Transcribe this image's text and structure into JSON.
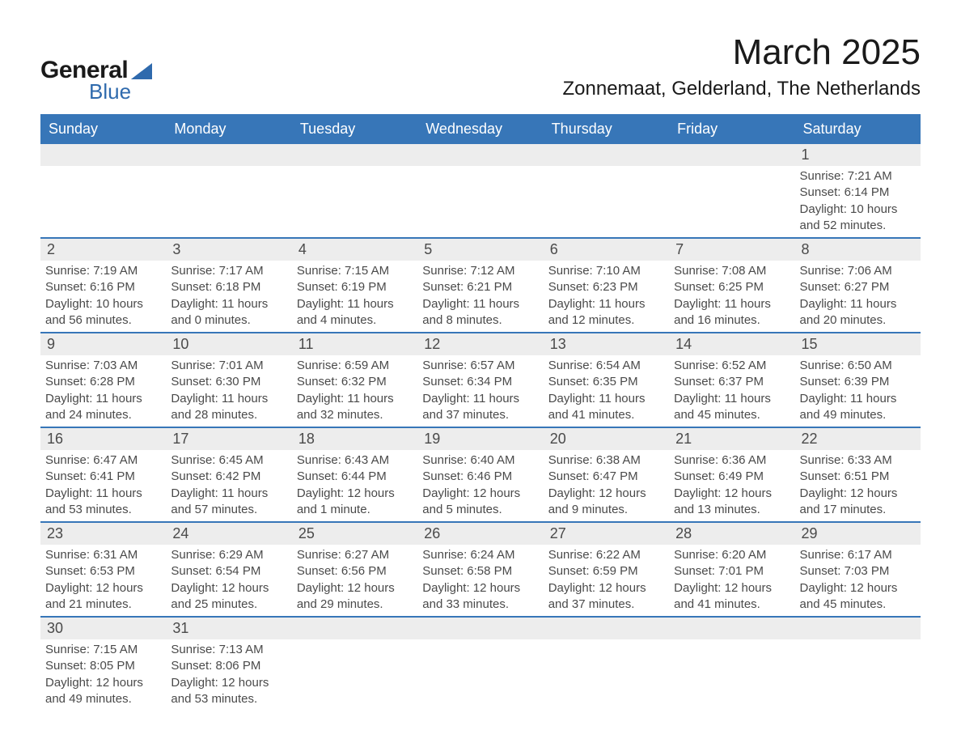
{
  "brand": {
    "name_part1": "General",
    "name_part2": "Blue"
  },
  "header": {
    "month_title": "March 2025",
    "location": "Zonnemaat, Gelderland, The Netherlands"
  },
  "colors": {
    "header_bg": "#3776b8",
    "header_text": "#ffffff",
    "daynum_bg": "#ededed",
    "row_divider": "#3776b8",
    "body_text": "#4a4a4a",
    "title_text": "#1a1a1a",
    "logo_blue": "#2f6aad",
    "page_bg": "#ffffff"
  },
  "typography": {
    "month_title_fontsize": 44,
    "location_fontsize": 24,
    "weekday_fontsize": 18,
    "daynum_fontsize": 18,
    "body_fontsize": 15
  },
  "weekdays": [
    "Sunday",
    "Monday",
    "Tuesday",
    "Wednesday",
    "Thursday",
    "Friday",
    "Saturday"
  ],
  "weeks": [
    [
      {
        "empty": true
      },
      {
        "empty": true
      },
      {
        "empty": true
      },
      {
        "empty": true
      },
      {
        "empty": true
      },
      {
        "empty": true
      },
      {
        "day": "1",
        "sunrise": "Sunrise: 7:21 AM",
        "sunset": "Sunset: 6:14 PM",
        "daylight": "Daylight: 10 hours and 52 minutes."
      }
    ],
    [
      {
        "day": "2",
        "sunrise": "Sunrise: 7:19 AM",
        "sunset": "Sunset: 6:16 PM",
        "daylight": "Daylight: 10 hours and 56 minutes."
      },
      {
        "day": "3",
        "sunrise": "Sunrise: 7:17 AM",
        "sunset": "Sunset: 6:18 PM",
        "daylight": "Daylight: 11 hours and 0 minutes."
      },
      {
        "day": "4",
        "sunrise": "Sunrise: 7:15 AM",
        "sunset": "Sunset: 6:19 PM",
        "daylight": "Daylight: 11 hours and 4 minutes."
      },
      {
        "day": "5",
        "sunrise": "Sunrise: 7:12 AM",
        "sunset": "Sunset: 6:21 PM",
        "daylight": "Daylight: 11 hours and 8 minutes."
      },
      {
        "day": "6",
        "sunrise": "Sunrise: 7:10 AM",
        "sunset": "Sunset: 6:23 PM",
        "daylight": "Daylight: 11 hours and 12 minutes."
      },
      {
        "day": "7",
        "sunrise": "Sunrise: 7:08 AM",
        "sunset": "Sunset: 6:25 PM",
        "daylight": "Daylight: 11 hours and 16 minutes."
      },
      {
        "day": "8",
        "sunrise": "Sunrise: 7:06 AM",
        "sunset": "Sunset: 6:27 PM",
        "daylight": "Daylight: 11 hours and 20 minutes."
      }
    ],
    [
      {
        "day": "9",
        "sunrise": "Sunrise: 7:03 AM",
        "sunset": "Sunset: 6:28 PM",
        "daylight": "Daylight: 11 hours and 24 minutes."
      },
      {
        "day": "10",
        "sunrise": "Sunrise: 7:01 AM",
        "sunset": "Sunset: 6:30 PM",
        "daylight": "Daylight: 11 hours and 28 minutes."
      },
      {
        "day": "11",
        "sunrise": "Sunrise: 6:59 AM",
        "sunset": "Sunset: 6:32 PM",
        "daylight": "Daylight: 11 hours and 32 minutes."
      },
      {
        "day": "12",
        "sunrise": "Sunrise: 6:57 AM",
        "sunset": "Sunset: 6:34 PM",
        "daylight": "Daylight: 11 hours and 37 minutes."
      },
      {
        "day": "13",
        "sunrise": "Sunrise: 6:54 AM",
        "sunset": "Sunset: 6:35 PM",
        "daylight": "Daylight: 11 hours and 41 minutes."
      },
      {
        "day": "14",
        "sunrise": "Sunrise: 6:52 AM",
        "sunset": "Sunset: 6:37 PM",
        "daylight": "Daylight: 11 hours and 45 minutes."
      },
      {
        "day": "15",
        "sunrise": "Sunrise: 6:50 AM",
        "sunset": "Sunset: 6:39 PM",
        "daylight": "Daylight: 11 hours and 49 minutes."
      }
    ],
    [
      {
        "day": "16",
        "sunrise": "Sunrise: 6:47 AM",
        "sunset": "Sunset: 6:41 PM",
        "daylight": "Daylight: 11 hours and 53 minutes."
      },
      {
        "day": "17",
        "sunrise": "Sunrise: 6:45 AM",
        "sunset": "Sunset: 6:42 PM",
        "daylight": "Daylight: 11 hours and 57 minutes."
      },
      {
        "day": "18",
        "sunrise": "Sunrise: 6:43 AM",
        "sunset": "Sunset: 6:44 PM",
        "daylight": "Daylight: 12 hours and 1 minute."
      },
      {
        "day": "19",
        "sunrise": "Sunrise: 6:40 AM",
        "sunset": "Sunset: 6:46 PM",
        "daylight": "Daylight: 12 hours and 5 minutes."
      },
      {
        "day": "20",
        "sunrise": "Sunrise: 6:38 AM",
        "sunset": "Sunset: 6:47 PM",
        "daylight": "Daylight: 12 hours and 9 minutes."
      },
      {
        "day": "21",
        "sunrise": "Sunrise: 6:36 AM",
        "sunset": "Sunset: 6:49 PM",
        "daylight": "Daylight: 12 hours and 13 minutes."
      },
      {
        "day": "22",
        "sunrise": "Sunrise: 6:33 AM",
        "sunset": "Sunset: 6:51 PM",
        "daylight": "Daylight: 12 hours and 17 minutes."
      }
    ],
    [
      {
        "day": "23",
        "sunrise": "Sunrise: 6:31 AM",
        "sunset": "Sunset: 6:53 PM",
        "daylight": "Daylight: 12 hours and 21 minutes."
      },
      {
        "day": "24",
        "sunrise": "Sunrise: 6:29 AM",
        "sunset": "Sunset: 6:54 PM",
        "daylight": "Daylight: 12 hours and 25 minutes."
      },
      {
        "day": "25",
        "sunrise": "Sunrise: 6:27 AM",
        "sunset": "Sunset: 6:56 PM",
        "daylight": "Daylight: 12 hours and 29 minutes."
      },
      {
        "day": "26",
        "sunrise": "Sunrise: 6:24 AM",
        "sunset": "Sunset: 6:58 PM",
        "daylight": "Daylight: 12 hours and 33 minutes."
      },
      {
        "day": "27",
        "sunrise": "Sunrise: 6:22 AM",
        "sunset": "Sunset: 6:59 PM",
        "daylight": "Daylight: 12 hours and 37 minutes."
      },
      {
        "day": "28",
        "sunrise": "Sunrise: 6:20 AM",
        "sunset": "Sunset: 7:01 PM",
        "daylight": "Daylight: 12 hours and 41 minutes."
      },
      {
        "day": "29",
        "sunrise": "Sunrise: 6:17 AM",
        "sunset": "Sunset: 7:03 PM",
        "daylight": "Daylight: 12 hours and 45 minutes."
      }
    ],
    [
      {
        "day": "30",
        "sunrise": "Sunrise: 7:15 AM",
        "sunset": "Sunset: 8:05 PM",
        "daylight": "Daylight: 12 hours and 49 minutes."
      },
      {
        "day": "31",
        "sunrise": "Sunrise: 7:13 AM",
        "sunset": "Sunset: 8:06 PM",
        "daylight": "Daylight: 12 hours and 53 minutes."
      },
      {
        "empty": true
      },
      {
        "empty": true
      },
      {
        "empty": true
      },
      {
        "empty": true
      },
      {
        "empty": true
      }
    ]
  ]
}
